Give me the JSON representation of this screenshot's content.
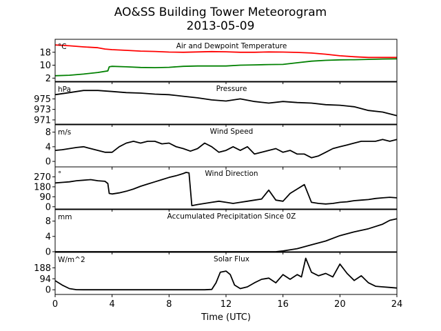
{
  "title": "AO&SS Building Tower Meteorogram",
  "subtitle": "2013-05-09",
  "chart_data": {
    "type": "line",
    "xlabel": "Time (UTC)",
    "xlim": [
      0,
      24
    ],
    "xticks": [
      0,
      4,
      8,
      12,
      16,
      20,
      24
    ],
    "panels": [
      {
        "name": "Air and Dewpoint Temperature",
        "unit": "°C",
        "ylim": [
          0,
          26
        ],
        "yticks": [
          2,
          10,
          18
        ],
        "series": [
          {
            "name": "Air Temperature",
            "color": "#ff0000",
            "x": [
              0,
              1,
              2,
              3,
              3.5,
              4,
              5,
              6,
              7,
              8,
              9,
              10,
              11,
              12,
              13,
              14,
              15,
              16,
              17,
              18,
              19,
              20,
              21,
              22,
              23,
              24
            ],
            "y": [
              22.5,
              22,
              21.3,
              20.8,
              20,
              19.6,
              19.2,
              18.7,
              18.5,
              18.1,
              18,
              18.2,
              18.4,
              18.3,
              18,
              18,
              18.2,
              18.1,
              17.9,
              17.5,
              16.8,
              15.8,
              15.2,
              14.8,
              14.8,
              14.8
            ]
          },
          {
            "name": "Dewpoint",
            "color": "#008000",
            "x": [
              0,
              1,
              2,
              3,
              3.7,
              3.8,
              4,
              5,
              6,
              7,
              8,
              9,
              10,
              11,
              12,
              13,
              14,
              15,
              16,
              17,
              18,
              19,
              20,
              21,
              22,
              23,
              24
            ],
            "y": [
              3.5,
              3.8,
              4.5,
              5.5,
              6.5,
              9,
              9.3,
              9,
              8.6,
              8.5,
              8.7,
              9.3,
              9.5,
              9.5,
              9.5,
              10,
              10.2,
              10.4,
              10.5,
              11.5,
              12.5,
              13,
              13.3,
              13.4,
              13.6,
              13.8,
              13.9
            ]
          }
        ]
      },
      {
        "name": "Pressure",
        "unit": "hPa",
        "ylim": [
          970.2,
          978.2
        ],
        "yticks": [
          971,
          973,
          975
        ],
        "series": [
          {
            "name": "Pressure",
            "color": "#000000",
            "x": [
              0,
              1,
              2,
              3,
              4,
              5,
              6,
              7,
              8,
              9,
              10,
              11,
              12,
              13,
              14,
              15,
              16,
              17,
              18,
              19,
              20,
              21,
              22,
              23,
              24
            ],
            "y": [
              975.8,
              976.2,
              976.6,
              976.6,
              976.4,
              976.2,
              976.1,
              975.9,
              975.8,
              975.5,
              975.2,
              974.8,
              974.6,
              975,
              974.5,
              974.2,
              974.5,
              974.3,
              974.2,
              973.9,
              973.8,
              973.5,
              972.8,
              972.5,
              971.8
            ]
          }
        ]
      },
      {
        "name": "Wind Speed",
        "unit": "m/s",
        "ylim": [
          -1.5,
          10
        ],
        "yticks": [
          0,
          4,
          8
        ],
        "series": [
          {
            "name": "Wind Speed",
            "color": "#000000",
            "x": [
              0,
              0.5,
              1,
              1.5,
              2,
              2.5,
              3,
              3.5,
              4,
              4.5,
              5,
              5.5,
              6,
              6.5,
              7,
              7.5,
              8,
              8.5,
              9,
              9.5,
              10,
              10.5,
              11,
              11.5,
              12,
              12.5,
              13,
              13.5,
              14,
              14.5,
              15,
              15.5,
              16,
              16.5,
              17,
              17.5,
              18,
              18.5,
              19,
              19.5,
              20,
              20.5,
              21,
              21.5,
              22,
              22.5,
              23,
              23.5,
              24
            ],
            "y": [
              3,
              3.2,
              3.5,
              3.8,
              4,
              3.5,
              3,
              2.5,
              2.5,
              4,
              5,
              5.5,
              5,
              5.5,
              5.5,
              4.8,
              5,
              4,
              3.5,
              2.8,
              3.5,
              5,
              4,
              2.5,
              3,
              4,
              3,
              4,
              2,
              2.5,
              3,
              3.5,
              2.5,
              3,
              2,
              2,
              1,
              1.5,
              2.5,
              3.5,
              4,
              4.5,
              5,
              5.5,
              5.5,
              5.5,
              6,
              5.5,
              6
            ]
          }
        ]
      },
      {
        "name": "Wind Direction",
        "unit": "°",
        "ylim": [
          -20,
          360
        ],
        "yticks": [
          0,
          90,
          180,
          270
        ],
        "series": [
          {
            "name": "Wind Direction",
            "color": "#000000",
            "x": [
              0,
              0.5,
              1,
              1.5,
              2,
              2.5,
              3,
              3.5,
              3.7,
              3.8,
              4,
              4.5,
              5,
              5.5,
              6,
              6.5,
              7,
              7.5,
              8,
              8.5,
              9,
              9.2,
              9.4,
              9.6,
              10,
              10.5,
              11,
              11.5,
              12,
              12.5,
              13,
              13.5,
              14,
              14.5,
              15,
              15.5,
              16,
              16.5,
              17,
              17.5,
              18,
              18.5,
              19,
              19.5,
              20,
              20.5,
              21,
              21.5,
              22,
              22.5,
              23,
              23.5,
              24
            ],
            "y": [
              215,
              220,
              225,
              235,
              240,
              245,
              235,
              230,
              210,
              120,
              115,
              125,
              140,
              160,
              185,
              205,
              225,
              245,
              265,
              280,
              300,
              310,
              305,
              10,
              20,
              30,
              40,
              50,
              40,
              30,
              40,
              50,
              60,
              70,
              150,
              60,
              50,
              120,
              160,
              200,
              40,
              30,
              25,
              30,
              40,
              45,
              55,
              60,
              65,
              75,
              80,
              85,
              80
            ]
          }
        ]
      },
      {
        "name": "Accumulated Precipitation Since 0Z",
        "unit": "mm",
        "ylim": [
          0,
          11
        ],
        "yticks": [
          0,
          4,
          8
        ],
        "series": [
          {
            "name": "Accumulated Precipitation",
            "color": "#000000",
            "x": [
              0,
              15.5,
              16,
              17,
              18,
              19,
              20,
              21,
              22,
              23,
              23.5,
              24
            ],
            "y": [
              0,
              0,
              0.2,
              0.8,
              1.8,
              2.8,
              4.2,
              5.2,
              6,
              7.2,
              8.2,
              8.6
            ]
          }
        ]
      },
      {
        "name": "Solar Flux",
        "unit": "W/m^2",
        "ylim": [
          -40,
          320
        ],
        "yticks": [
          0,
          94,
          188
        ],
        "series": [
          {
            "name": "Solar Flux",
            "color": "#000000",
            "x": [
              0,
              0.5,
              1,
              1.5,
              2,
              3,
              4,
              5,
              6,
              7,
              8,
              9,
              10,
              10.5,
              11,
              11.3,
              11.6,
              12,
              12.3,
              12.6,
              13,
              13.5,
              14,
              14.5,
              15,
              15.5,
              16,
              16.5,
              17,
              17.3,
              17.6,
              18,
              18.5,
              19,
              19.5,
              20,
              20.5,
              21,
              21.5,
              22,
              22.5,
              23,
              23.5,
              24
            ],
            "y": [
              78,
              40,
              10,
              1,
              0,
              0,
              0,
              0,
              0,
              0,
              0,
              0,
              0,
              0,
              3,
              60,
              150,
              160,
              130,
              40,
              10,
              25,
              60,
              90,
              100,
              60,
              130,
              90,
              130,
              110,
              270,
              150,
              120,
              140,
              110,
              220,
              140,
              80,
              120,
              60,
              30,
              25,
              20,
              15
            ]
          }
        ]
      }
    ]
  }
}
